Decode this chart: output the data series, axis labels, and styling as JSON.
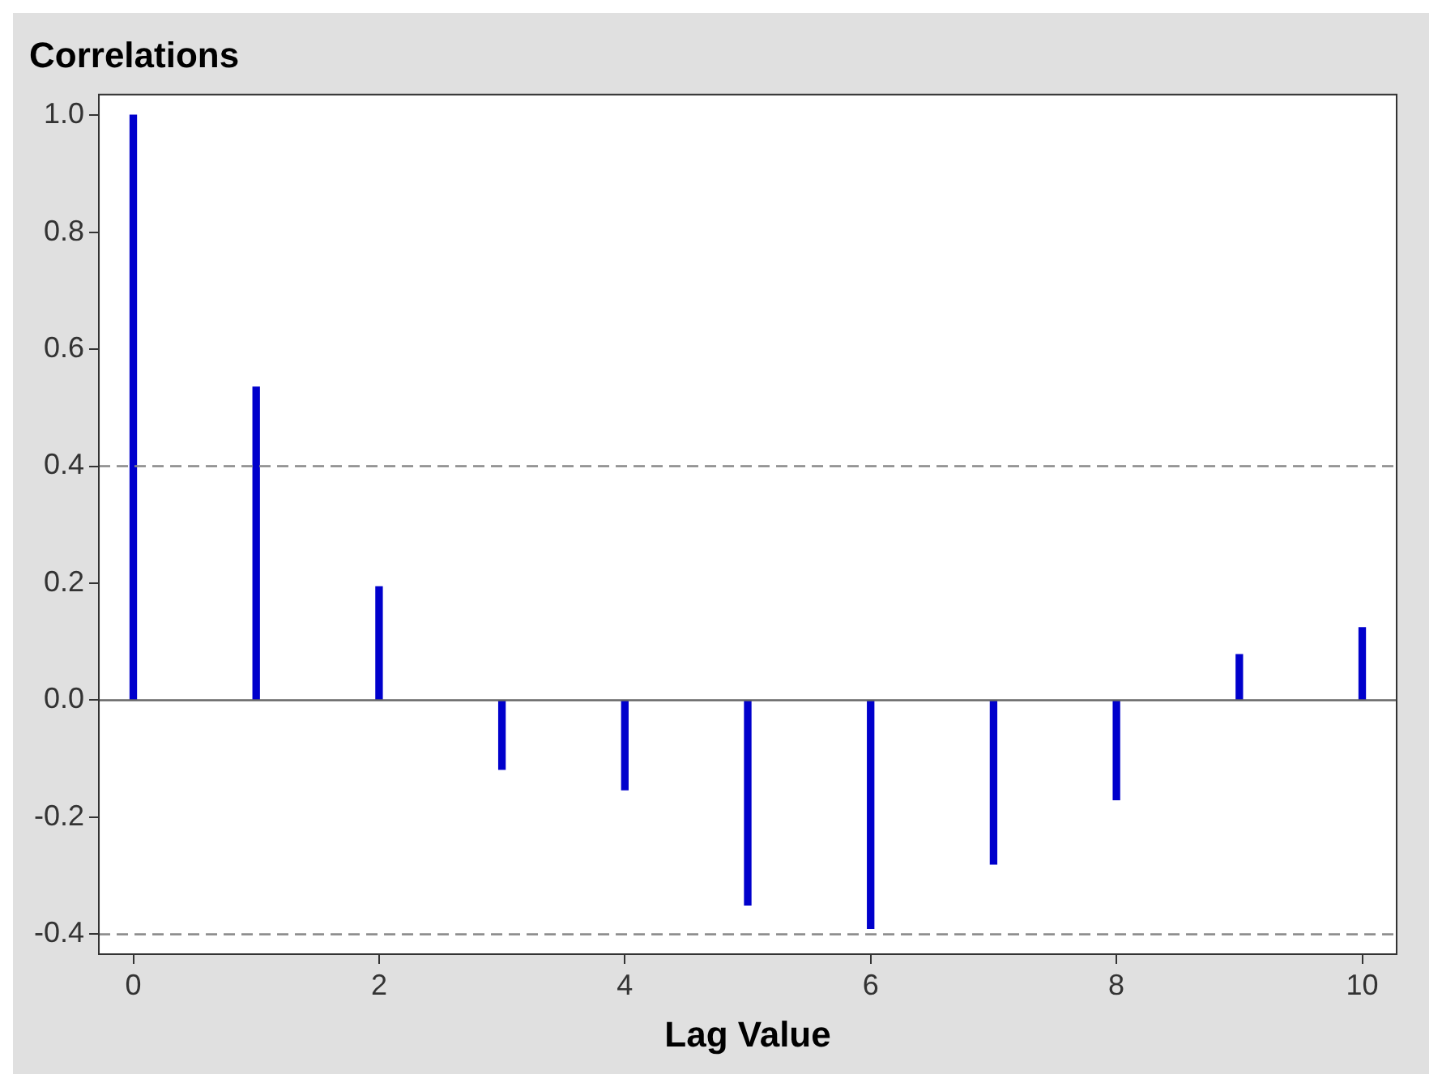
{
  "chart_data": {
    "type": "bar",
    "title": "Correlations",
    "xlabel": "Lag Value",
    "x": [
      0,
      1,
      2,
      3,
      4,
      5,
      6,
      7,
      8,
      9,
      10
    ],
    "values": [
      1.0,
      0.535,
      0.194,
      -0.118,
      -0.153,
      -0.35,
      -0.39,
      -0.28,
      -0.17,
      0.078,
      0.124
    ],
    "color": "#0000cc",
    "xlim": [
      -0.28,
      10.28
    ],
    "xticks": [
      0,
      2,
      4,
      6,
      8,
      10
    ],
    "ylim": [
      -0.434,
      1.035
    ],
    "yticks": [
      -0.4,
      -0.2,
      {
        "value": 0,
        "label": "0.0"
      },
      0.2,
      0.4,
      0.6,
      0.8,
      {
        "value": 1,
        "label": "1.0"
      }
    ],
    "ref_lines": [
      {
        "axis": "y",
        "value": 0.4,
        "color": "#888888",
        "line_style": "dashed"
      },
      {
        "axis": "y",
        "value": -0.4,
        "color": "#888888",
        "line_style": "dashed"
      },
      {
        "axis": "y",
        "value": 0,
        "color": "#666666",
        "line_style": "solid"
      }
    ],
    "grid": false,
    "legend": false
  }
}
